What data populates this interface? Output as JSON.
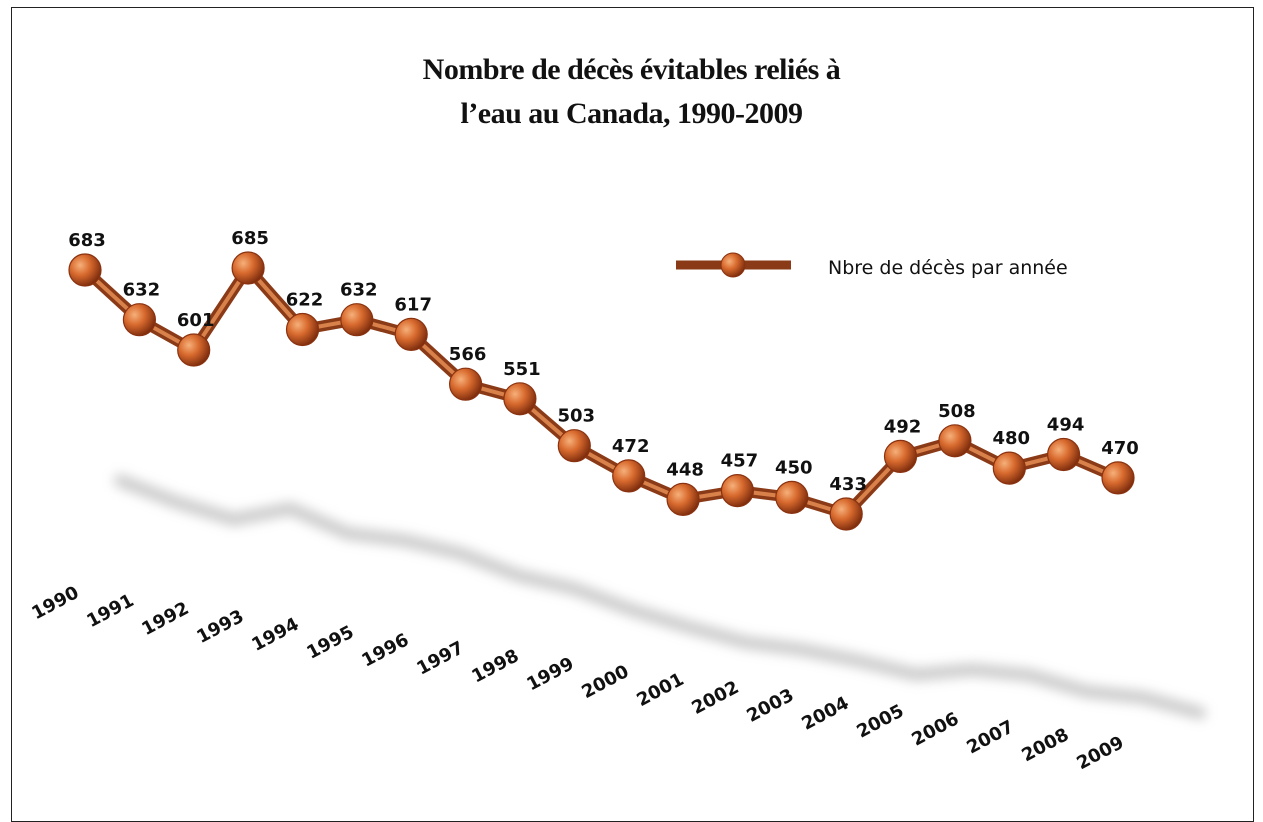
{
  "chart_data": {
    "type": "line",
    "title_lines": [
      "Nombre de décès évitables reliés à",
      "l’eau au Canada, 1990-2009"
    ],
    "categories": [
      "1990",
      "1991",
      "1992",
      "1993",
      "1994",
      "1995",
      "1996",
      "1997",
      "1998",
      "1999",
      "2000",
      "2001",
      "2002",
      "2003",
      "2004",
      "2005",
      "2006",
      "2007",
      "2008",
      "2009"
    ],
    "series": [
      {
        "name": "Nbre de décès par année",
        "values": [
          683,
          632,
          601,
          685,
          622,
          632,
          617,
          566,
          551,
          503,
          472,
          448,
          457,
          450,
          433,
          492,
          508,
          480,
          494,
          470
        ]
      }
    ],
    "data_labels": [
      "683",
      "632",
      "601",
      "685",
      "622",
      "632",
      "617",
      "566",
      "551",
      "503",
      "472",
      "448",
      "457",
      "450",
      "433",
      "492",
      "508",
      "480",
      "494",
      "470"
    ],
    "legend_position": "top-right",
    "grid": false,
    "colors": {
      "line": "#8a3a16",
      "marker": "#d86a2e",
      "marker_dark": "#8a3210"
    }
  }
}
